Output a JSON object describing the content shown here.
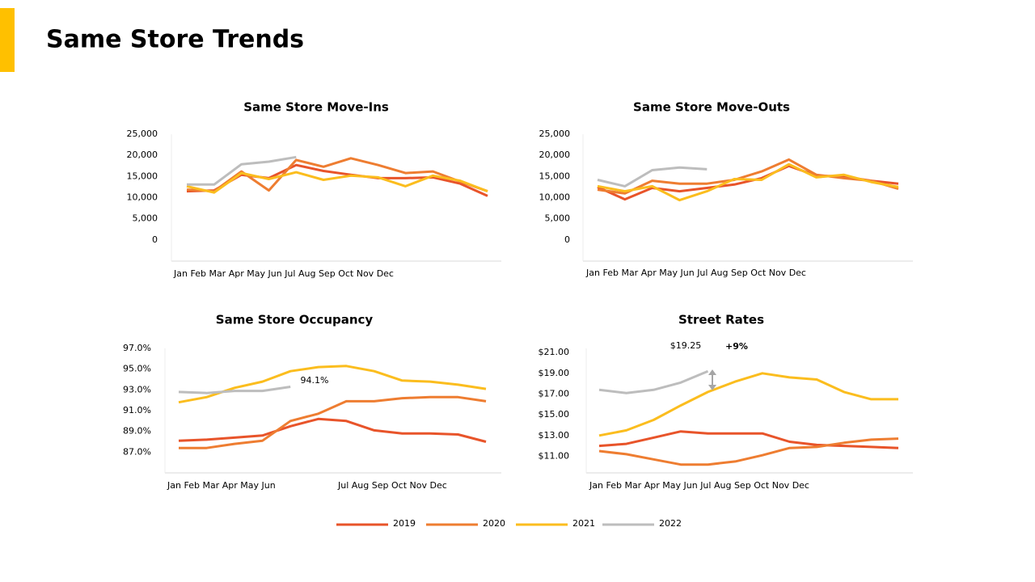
{
  "title": "Same Store Trends",
  "chart_data": [
    {
      "type": "line",
      "title": "Same Store Move-Ins",
      "categories": [
        "Jan",
        "Feb",
        "Mar",
        "Apr",
        "May",
        "Jun",
        "Jul",
        "Aug",
        "Sep",
        "Oct",
        "Nov",
        "Dec"
      ],
      "ylim": [
        -5000,
        25000
      ],
      "yticks": [
        0,
        {
          "value": 5000,
          "label": "5,000"
        },
        {
          "value": 10000,
          "label": "10,000"
        },
        {
          "value": 15000,
          "label": "15,000"
        },
        {
          "value": 20000,
          "label": "20,000"
        },
        {
          "value": 25000,
          "label": "25,000"
        }
      ],
      "series": [
        {
          "name": "2019",
          "color": "#e8542a",
          "values": [
            11500,
            11700,
            15400,
            14600,
            17700,
            16300,
            15400,
            14600,
            14600,
            14800,
            13300,
            10400
          ]
        },
        {
          "name": "2020",
          "color": "#ee7d31",
          "values": [
            11900,
            11500,
            16200,
            11700,
            18900,
            17300,
            19300,
            17700,
            15800,
            16200,
            13800,
            11500
          ]
        },
        {
          "name": "2021",
          "color": "#fbbd1e",
          "values": [
            12700,
            11200,
            15800,
            14400,
            16000,
            14200,
            15200,
            14800,
            12700,
            15200,
            14000,
            11500
          ]
        },
        {
          "name": "2022",
          "color": "#bdbdbd",
          "values": [
            13100,
            13100,
            17900,
            18500,
            19600,
            null,
            null,
            null,
            null,
            null,
            null,
            null
          ]
        }
      ]
    },
    {
      "type": "line",
      "title": "Same Store Move-Outs",
      "categories": [
        "Jan",
        "Feb",
        "Mar",
        "Apr",
        "May",
        "Jun",
        "Jul",
        "Aug",
        "Sep",
        "Oct",
        "Nov",
        "Dec"
      ],
      "ylim": [
        -5000,
        25000
      ],
      "yticks": [
        0,
        {
          "value": 5000,
          "label": "5,000"
        },
        {
          "value": 10000,
          "label": "10,000"
        },
        {
          "value": 15000,
          "label": "15,000"
        },
        {
          "value": 20000,
          "label": "20,000"
        },
        {
          "value": 25000,
          "label": "25,000"
        }
      ],
      "series": [
        {
          "name": "2019",
          "color": "#e8542a",
          "values": [
            12500,
            9600,
            12300,
            11500,
            12300,
            13100,
            14600,
            17500,
            15200,
            15000,
            14000,
            13300
          ]
        },
        {
          "name": "2020",
          "color": "#ee7d31",
          "values": [
            11900,
            11000,
            14000,
            13300,
            13300,
            14200,
            16200,
            19000,
            15400,
            14600,
            14000,
            12100
          ]
        },
        {
          "name": "2021",
          "color": "#fbbd1e",
          "values": [
            12700,
            11500,
            12700,
            9400,
            11500,
            14400,
            14200,
            17900,
            14800,
            15400,
            13700,
            12500
          ]
        },
        {
          "name": "2022",
          "color": "#bdbdbd",
          "values": [
            14200,
            12700,
            16500,
            17100,
            16700,
            null,
            null,
            null,
            null,
            null,
            null,
            null
          ]
        }
      ]
    },
    {
      "type": "line",
      "title": "Same Store Occupancy",
      "categories": [
        "Jan",
        "Feb",
        "Mar",
        "Apr",
        "May",
        "Jun",
        "Jul",
        "Aug",
        "Sep",
        "Oct",
        "Nov",
        "Dec"
      ],
      "ylim": [
        85,
        97
      ],
      "yticks": [
        {
          "value": 87,
          "label": "87.0%"
        },
        {
          "value": 89,
          "label": "89.0%"
        },
        {
          "value": 91,
          "label": "91.0%"
        },
        {
          "value": 93,
          "label": "93.0%"
        },
        {
          "value": 95,
          "label": "95.0%"
        },
        {
          "value": 97,
          "label": "97.0%"
        }
      ],
      "annotations": [
        "94.1%"
      ],
      "series": [
        {
          "name": "2019",
          "color": "#e8542a",
          "values": [
            88.1,
            88.2,
            88.4,
            88.6,
            89.5,
            90.2,
            90.0,
            89.1,
            88.8,
            88.8,
            88.7,
            88.0
          ]
        },
        {
          "name": "2020",
          "color": "#ee7d31",
          "values": [
            87.4,
            87.4,
            87.8,
            88.1,
            90.0,
            90.7,
            91.9,
            91.9,
            92.2,
            92.3,
            92.3,
            91.9
          ]
        },
        {
          "name": "2021",
          "color": "#fbbd1e",
          "values": [
            91.8,
            92.3,
            93.2,
            93.8,
            94.8,
            95.2,
            95.3,
            94.8,
            93.9,
            93.8,
            93.5,
            93.1
          ]
        },
        {
          "name": "2022",
          "color": "#bdbdbd",
          "values": [
            92.8,
            92.7,
            92.9,
            92.9,
            93.3,
            null,
            null,
            null,
            null,
            null,
            null,
            null
          ]
        }
      ]
    },
    {
      "type": "line",
      "title": "Street Rates",
      "categories": [
        "Jan",
        "Feb",
        "Mar",
        "Apr",
        "May",
        "Jun",
        "Jul",
        "Aug",
        "Sep",
        "Oct",
        "Nov",
        "Dec"
      ],
      "ylim": [
        9.4,
        21.4
      ],
      "yticks": [
        {
          "value": 11,
          "label": "$11.00"
        },
        {
          "value": 13,
          "label": "$13.00"
        },
        {
          "value": 15,
          "label": "$15.00"
        },
        {
          "value": 17,
          "label": "$17.00"
        },
        {
          "value": 19,
          "label": "$19.00"
        },
        {
          "value": 21,
          "label": "$21.00"
        }
      ],
      "annotations": [
        "$19.25",
        "+9%"
      ],
      "series": [
        {
          "name": "2019",
          "color": "#e8542a",
          "values": [
            12.0,
            12.2,
            12.8,
            13.4,
            13.2,
            13.2,
            13.2,
            12.4,
            12.1,
            12.0,
            11.9,
            11.8
          ]
        },
        {
          "name": "2020",
          "color": "#ee7d31",
          "values": [
            11.5,
            11.2,
            10.7,
            10.2,
            10.2,
            10.5,
            11.1,
            11.8,
            11.9,
            12.3,
            12.6,
            12.7
          ]
        },
        {
          "name": "2021",
          "color": "#fbbd1e",
          "values": [
            13.0,
            13.5,
            14.5,
            15.9,
            17.2,
            18.2,
            19.0,
            18.6,
            18.4,
            17.2,
            16.5,
            16.5
          ]
        },
        {
          "name": "2022",
          "color": "#bdbdbd",
          "values": [
            17.4,
            17.1,
            17.4,
            18.1,
            19.2,
            null,
            null,
            null,
            null,
            null,
            null,
            null
          ]
        }
      ]
    }
  ]
}
